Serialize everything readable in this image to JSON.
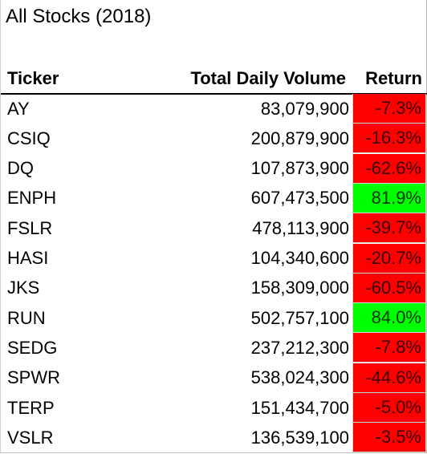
{
  "sheet": {
    "title": "All Stocks (2018)",
    "headers": {
      "ticker": "Ticker",
      "volume": "Total Daily Volume",
      "return": "Return"
    },
    "rows": [
      {
        "ticker": "AY",
        "volume": "83,079,900",
        "return": "-7.3%",
        "status": "negative"
      },
      {
        "ticker": "CSIQ",
        "volume": "200,879,900",
        "return": "-16.3%",
        "status": "negative"
      },
      {
        "ticker": "DQ",
        "volume": "107,873,900",
        "return": "-62.6%",
        "status": "negative"
      },
      {
        "ticker": "ENPH",
        "volume": "607,473,500",
        "return": "81.9%",
        "status": "positive"
      },
      {
        "ticker": "FSLR",
        "volume": "478,113,900",
        "return": "-39.7%",
        "status": "negative"
      },
      {
        "ticker": "HASI",
        "volume": "104,340,600",
        "return": "-20.7%",
        "status": "negative"
      },
      {
        "ticker": "JKS",
        "volume": "158,309,000",
        "return": "-60.5%",
        "status": "negative"
      },
      {
        "ticker": "RUN",
        "volume": "502,757,100",
        "return": "84.0%",
        "status": "positive"
      },
      {
        "ticker": "SEDG",
        "volume": "237,212,300",
        "return": "-7.8%",
        "status": "negative"
      },
      {
        "ticker": "SPWR",
        "volume": "538,024,300",
        "return": "-44.6%",
        "status": "negative"
      },
      {
        "ticker": "TERP",
        "volume": "151,434,700",
        "return": "-5.0%",
        "status": "negative"
      },
      {
        "ticker": "VSLR",
        "volume": "136,539,100",
        "return": "-3.5%",
        "status": "negative"
      }
    ]
  },
  "colors": {
    "negative_fill": "#ff0000",
    "positive_fill": "#00ff00"
  }
}
